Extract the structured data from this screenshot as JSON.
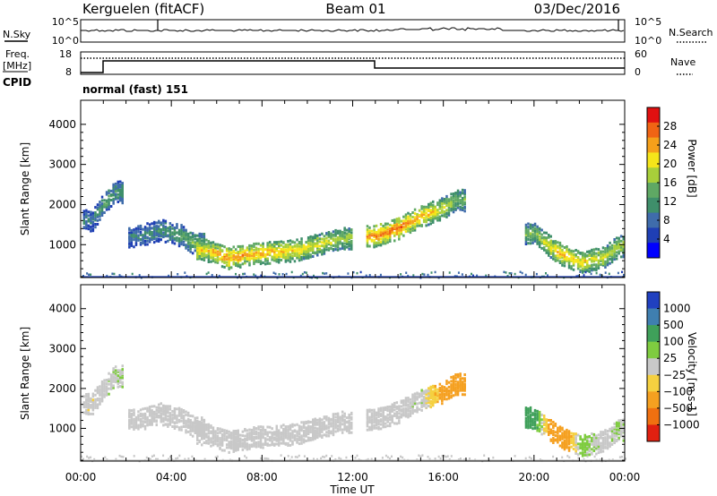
{
  "header": {
    "station": "Kerguelen (fitACF)",
    "beam": "Beam 01",
    "date": "03/Dec/2016"
  },
  "top_panels": {
    "nsky_label": "N.Sky",
    "nsearch_label": "N.Search",
    "nave_label": "Nave",
    "freq_label_line1": "Freq.",
    "freq_label_line2": "[MHz]",
    "cpid_label": "CPID",
    "cpid_text": "normal (fast) 151",
    "nsky_ticks": [
      "10^5",
      "10^0"
    ],
    "nsearch_ticks": [
      "10^5",
      "10^0"
    ],
    "freq_ticks": [
      "18",
      "8"
    ],
    "nave_ticks": [
      "60",
      "0"
    ]
  },
  "chart_data": [
    {
      "type": "heatmap",
      "title": "",
      "xlabel": "Time UT",
      "ylabel": "Slant Range [km]",
      "xlim": [
        "00:00",
        "24:00"
      ],
      "ylim": [
        180,
        4600
      ],
      "x_tick_labels": [
        "00:00",
        "04:00",
        "08:00",
        "12:00",
        "16:00",
        "20:00",
        "00:00"
      ],
      "y_tick_labels": [
        "1000",
        "2000",
        "3000",
        "4000"
      ],
      "colorbar": {
        "label": "Power [dB]",
        "range": [
          0,
          32
        ],
        "tick_labels": [
          "4",
          "8",
          "12",
          "16",
          "20",
          "24",
          "28"
        ],
        "colors": [
          "#0000ff",
          "#1f3fb4",
          "#3f6cab",
          "#3f8f6b",
          "#5fa864",
          "#a8cf3a",
          "#f5e51a",
          "#f5a01a",
          "#f06414",
          "#e01010"
        ]
      },
      "series": [
        {
          "x": [
            0.5,
            1.0,
            1.5
          ],
          "y": [
            1650,
            2050,
            2350
          ],
          "values": [
            10,
            14,
            12
          ]
        },
        {
          "x": [
            2.5,
            3.5,
            4.5,
            5.0
          ],
          "y": [
            1250,
            1400,
            1250,
            1050
          ],
          "values": [
            10,
            12,
            14,
            16
          ]
        },
        {
          "x": [
            5.5,
            6.5,
            7.5,
            8.5,
            9.5,
            10.5,
            11.5
          ],
          "y": [
            900,
            700,
            800,
            850,
            900,
            1050,
            1200
          ],
          "values": [
            22,
            26,
            24,
            24,
            22,
            20,
            18
          ]
        },
        {
          "x": [
            13.0,
            14.0,
            15.0,
            16.0,
            16.5
          ],
          "y": [
            1250,
            1450,
            1750,
            1950,
            2150
          ],
          "values": [
            26,
            28,
            24,
            20,
            16
          ]
        },
        {
          "x": [
            20.0,
            21.0,
            22.0,
            23.0,
            23.7
          ],
          "y": [
            1300,
            850,
            600,
            700,
            1000
          ],
          "values": [
            16,
            24,
            22,
            20,
            18
          ]
        }
      ]
    },
    {
      "type": "heatmap",
      "title": "",
      "xlabel": "Time UT",
      "ylabel": "Slant Range [km]",
      "xlim": [
        "00:00",
        "24:00"
      ],
      "ylim": [
        180,
        4600
      ],
      "x_tick_labels": [
        "00:00",
        "04:00",
        "08:00",
        "12:00",
        "16:00",
        "20:00",
        "00:00"
      ],
      "y_tick_labels": [
        "1000",
        "2000",
        "3000",
        "4000"
      ],
      "colorbar": {
        "label": "Velocity [m s-1]",
        "tick_labels": [
          "1000",
          "500",
          "100",
          "25",
          "−25",
          "−100",
          "−500",
          "−1000"
        ],
        "colors": [
          "#2040c0",
          "#3f7fb0",
          "#3fa05a",
          "#7fcc40",
          "#c8c8c8",
          "#f5d040",
          "#f5a020",
          "#f07010",
          "#e02010"
        ]
      },
      "series": [
        {
          "x": [
            0.5,
            1.0,
            1.5
          ],
          "y": [
            1650,
            2050,
            2350
          ],
          "values": [
            -10,
            5,
            15
          ]
        },
        {
          "x": [
            2.5,
            3.5,
            4.5,
            5.0
          ],
          "y": [
            1250,
            1400,
            1250,
            1050
          ],
          "values": [
            0,
            5,
            -5,
            0
          ]
        },
        {
          "x": [
            5.5,
            6.5,
            7.5,
            8.5,
            9.5,
            10.5,
            11.5
          ],
          "y": [
            900,
            700,
            800,
            850,
            900,
            1050,
            1200
          ],
          "values": [
            0,
            5,
            0,
            -5,
            0,
            5,
            0
          ]
        },
        {
          "x": [
            13.0,
            14.0,
            15.0,
            16.0,
            16.5
          ],
          "y": [
            1250,
            1450,
            1750,
            1950,
            2150
          ],
          "values": [
            -5,
            0,
            10,
            -150,
            -200
          ]
        },
        {
          "x": [
            20.0,
            21.0,
            22.0,
            23.0,
            23.7
          ],
          "y": [
            1300,
            850,
            600,
            700,
            1000
          ],
          "values": [
            150,
            -300,
            50,
            0,
            20
          ]
        }
      ]
    }
  ]
}
